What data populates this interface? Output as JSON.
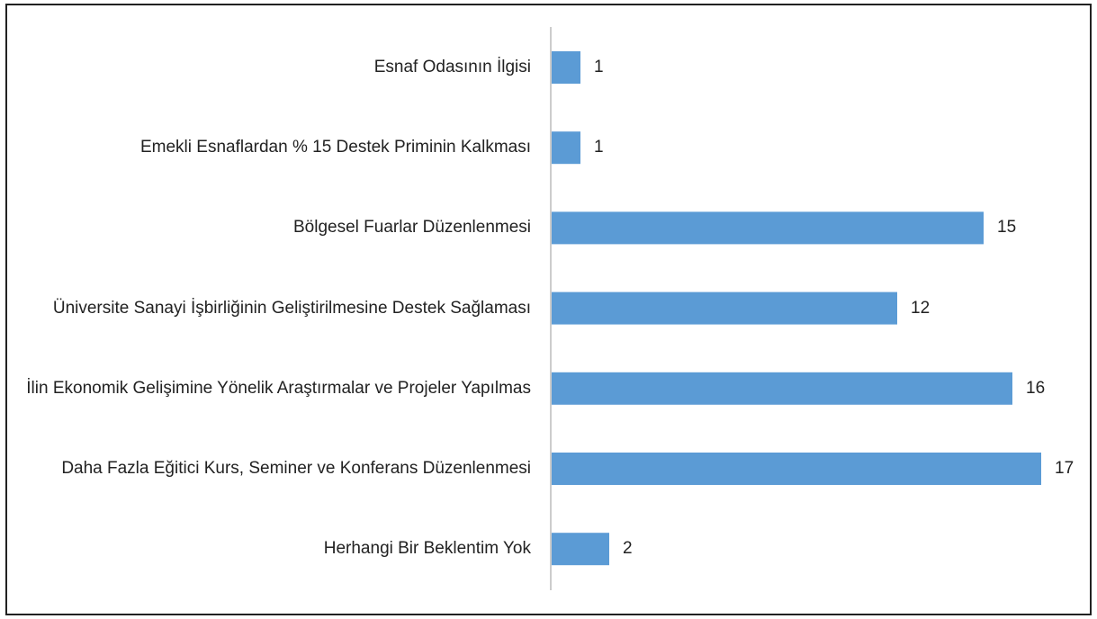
{
  "chart_data": {
    "type": "bar",
    "orientation": "horizontal",
    "categories": [
      "Esnaf Odasının İlgisi",
      "Emekli Esnaflardan % 15 Destek Priminin Kalkması",
      "Bölgesel Fuarlar Düzenlenmesi",
      "Üniversite Sanayi İşbirliğinin Geliştirilmesine Destek Sağlaması",
      "İlin Ekonomik Gelişimine Yönelik Araştırmalar ve Projeler Yapılmas",
      "Daha Fazla Eğitici Kurs, Seminer ve Konferans Düzenlenmesi",
      "Herhangi Bir Beklentim Yok"
    ],
    "values": [
      1,
      1,
      15,
      12,
      16,
      17,
      2
    ],
    "color": "#5b9bd5"
  }
}
